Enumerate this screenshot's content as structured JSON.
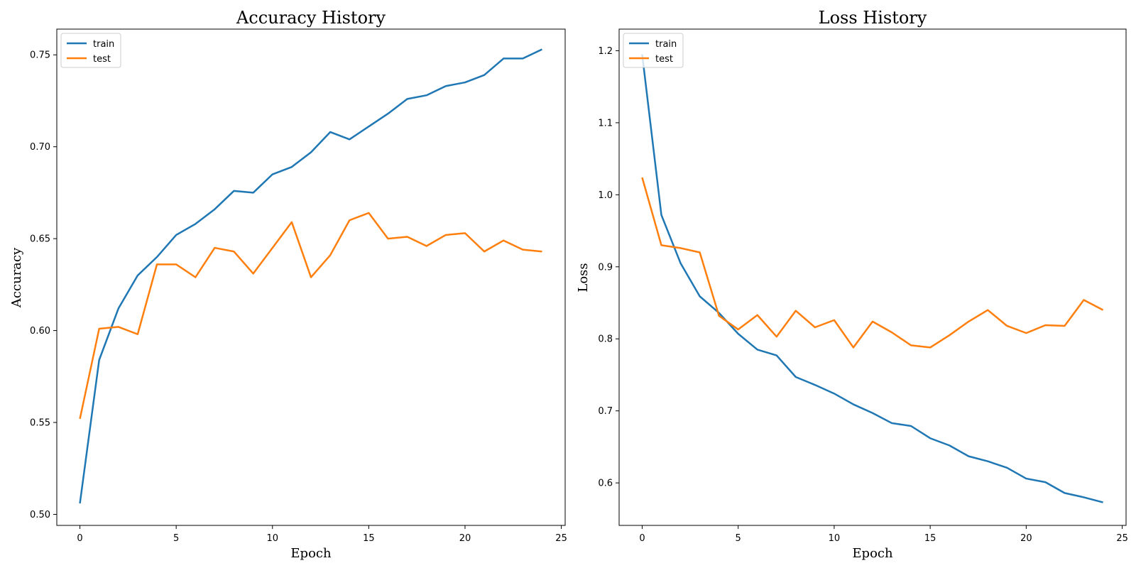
{
  "colors": {
    "train": "#1f77b4",
    "test": "#ff7f0e"
  },
  "chart_data": [
    {
      "type": "line",
      "title": "Accuracy History",
      "xlabel": "Epoch",
      "ylabel": "Accuracy",
      "xlim": [
        -1.2,
        25.2
      ],
      "ylim": [
        0.494,
        0.764
      ],
      "xticks": [
        0,
        5,
        10,
        15,
        20,
        25
      ],
      "yticks": [
        0.5,
        0.55,
        0.6,
        0.65,
        0.7,
        0.75
      ],
      "xtick_labels": [
        "0",
        "5",
        "10",
        "15",
        "20",
        "25"
      ],
      "ytick_labels": [
        "0.50",
        "0.55",
        "0.60",
        "0.65",
        "0.70",
        "0.75"
      ],
      "legend": "upper left",
      "grid": false,
      "x": [
        0,
        1,
        2,
        3,
        4,
        5,
        6,
        7,
        8,
        9,
        10,
        11,
        12,
        13,
        14,
        15,
        16,
        17,
        18,
        19,
        20,
        21,
        22,
        23,
        24
      ],
      "series": [
        {
          "name": "train",
          "color": "#1f77b4",
          "values": [
            0.506,
            0.584,
            0.612,
            0.63,
            0.64,
            0.652,
            0.658,
            0.666,
            0.676,
            0.675,
            0.685,
            0.689,
            0.697,
            0.708,
            0.704,
            0.711,
            0.718,
            0.726,
            0.728,
            0.733,
            0.735,
            0.739,
            0.748,
            0.748,
            0.753
          ]
        },
        {
          "name": "test",
          "color": "#ff7f0e",
          "values": [
            0.552,
            0.601,
            0.602,
            0.598,
            0.636,
            0.636,
            0.629,
            0.645,
            0.643,
            0.631,
            0.645,
            0.659,
            0.629,
            0.641,
            0.66,
            0.664,
            0.65,
            0.651,
            0.646,
            0.652,
            0.653,
            0.643,
            0.649,
            0.644,
            0.643
          ]
        }
      ]
    },
    {
      "type": "line",
      "title": "Loss History",
      "xlabel": "Epoch",
      "ylabel": "Loss",
      "xlim": [
        -1.2,
        25.2
      ],
      "ylim": [
        0.541,
        1.23
      ],
      "xticks": [
        0,
        5,
        10,
        15,
        20,
        25
      ],
      "yticks": [
        0.6,
        0.7,
        0.8,
        0.9,
        1.0,
        1.1,
        1.2
      ],
      "xtick_labels": [
        "0",
        "5",
        "10",
        "15",
        "20",
        "25"
      ],
      "ytick_labels": [
        "0.6",
        "0.7",
        "0.8",
        "0.9",
        "1.0",
        "1.1",
        "1.2"
      ],
      "legend": "upper left",
      "grid": false,
      "x": [
        0,
        1,
        2,
        3,
        4,
        5,
        6,
        7,
        8,
        9,
        10,
        11,
        12,
        13,
        14,
        15,
        16,
        17,
        18,
        19,
        20,
        21,
        22,
        23,
        24
      ],
      "series": [
        {
          "name": "train",
          "color": "#1f77b4",
          "values": [
            1.195,
            0.972,
            0.905,
            0.859,
            0.836,
            0.807,
            0.785,
            0.777,
            0.747,
            0.736,
            0.724,
            0.709,
            0.697,
            0.683,
            0.679,
            0.662,
            0.652,
            0.637,
            0.63,
            0.621,
            0.606,
            0.601,
            0.586,
            0.58,
            0.573
          ]
        },
        {
          "name": "test",
          "color": "#ff7f0e",
          "values": [
            1.024,
            0.93,
            0.926,
            0.92,
            0.832,
            0.813,
            0.833,
            0.803,
            0.839,
            0.816,
            0.826,
            0.788,
            0.824,
            0.809,
            0.791,
            0.788,
            0.805,
            0.824,
            0.84,
            0.818,
            0.808,
            0.819,
            0.818,
            0.854,
            0.84
          ]
        }
      ]
    }
  ]
}
